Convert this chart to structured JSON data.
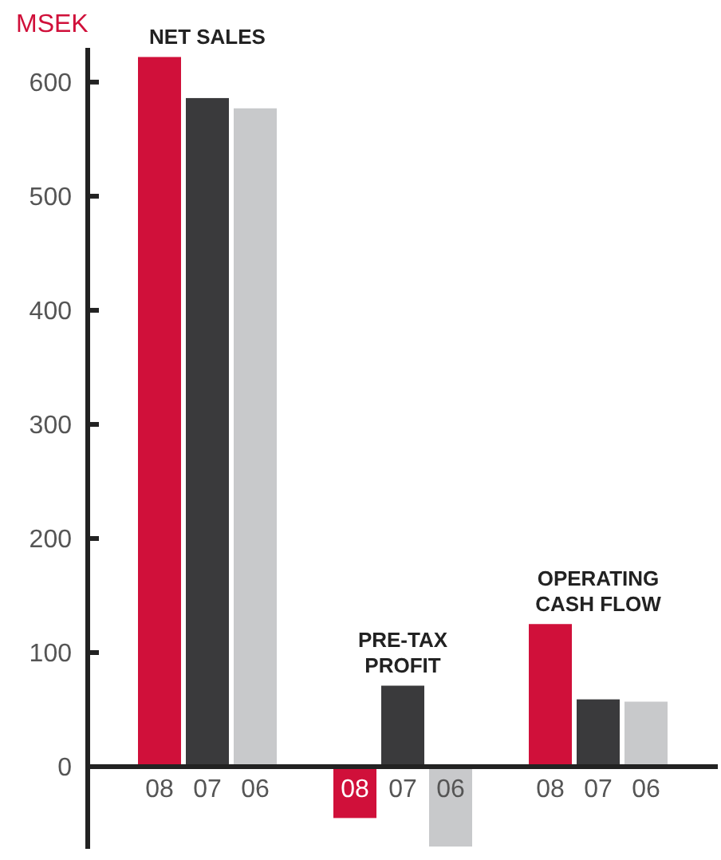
{
  "chart_data": {
    "type": "bar",
    "ylabel": "MSEK",
    "categories": [
      "NET SALES",
      "PRE-TAX PROFIT",
      "OPERATING CASH FLOW"
    ],
    "series": [
      {
        "name": "08",
        "color": "#d0103a",
        "values": [
          622,
          -45,
          125
        ]
      },
      {
        "name": "07",
        "color": "#3a3a3c",
        "values": [
          586,
          71,
          59
        ]
      },
      {
        "name": "06",
        "color": "#c8c9cb",
        "values": [
          577,
          -70,
          57
        ]
      }
    ],
    "ylim": [
      -72,
      630
    ],
    "yticks": [
      0,
      100,
      200,
      300,
      400,
      500,
      600
    ]
  }
}
